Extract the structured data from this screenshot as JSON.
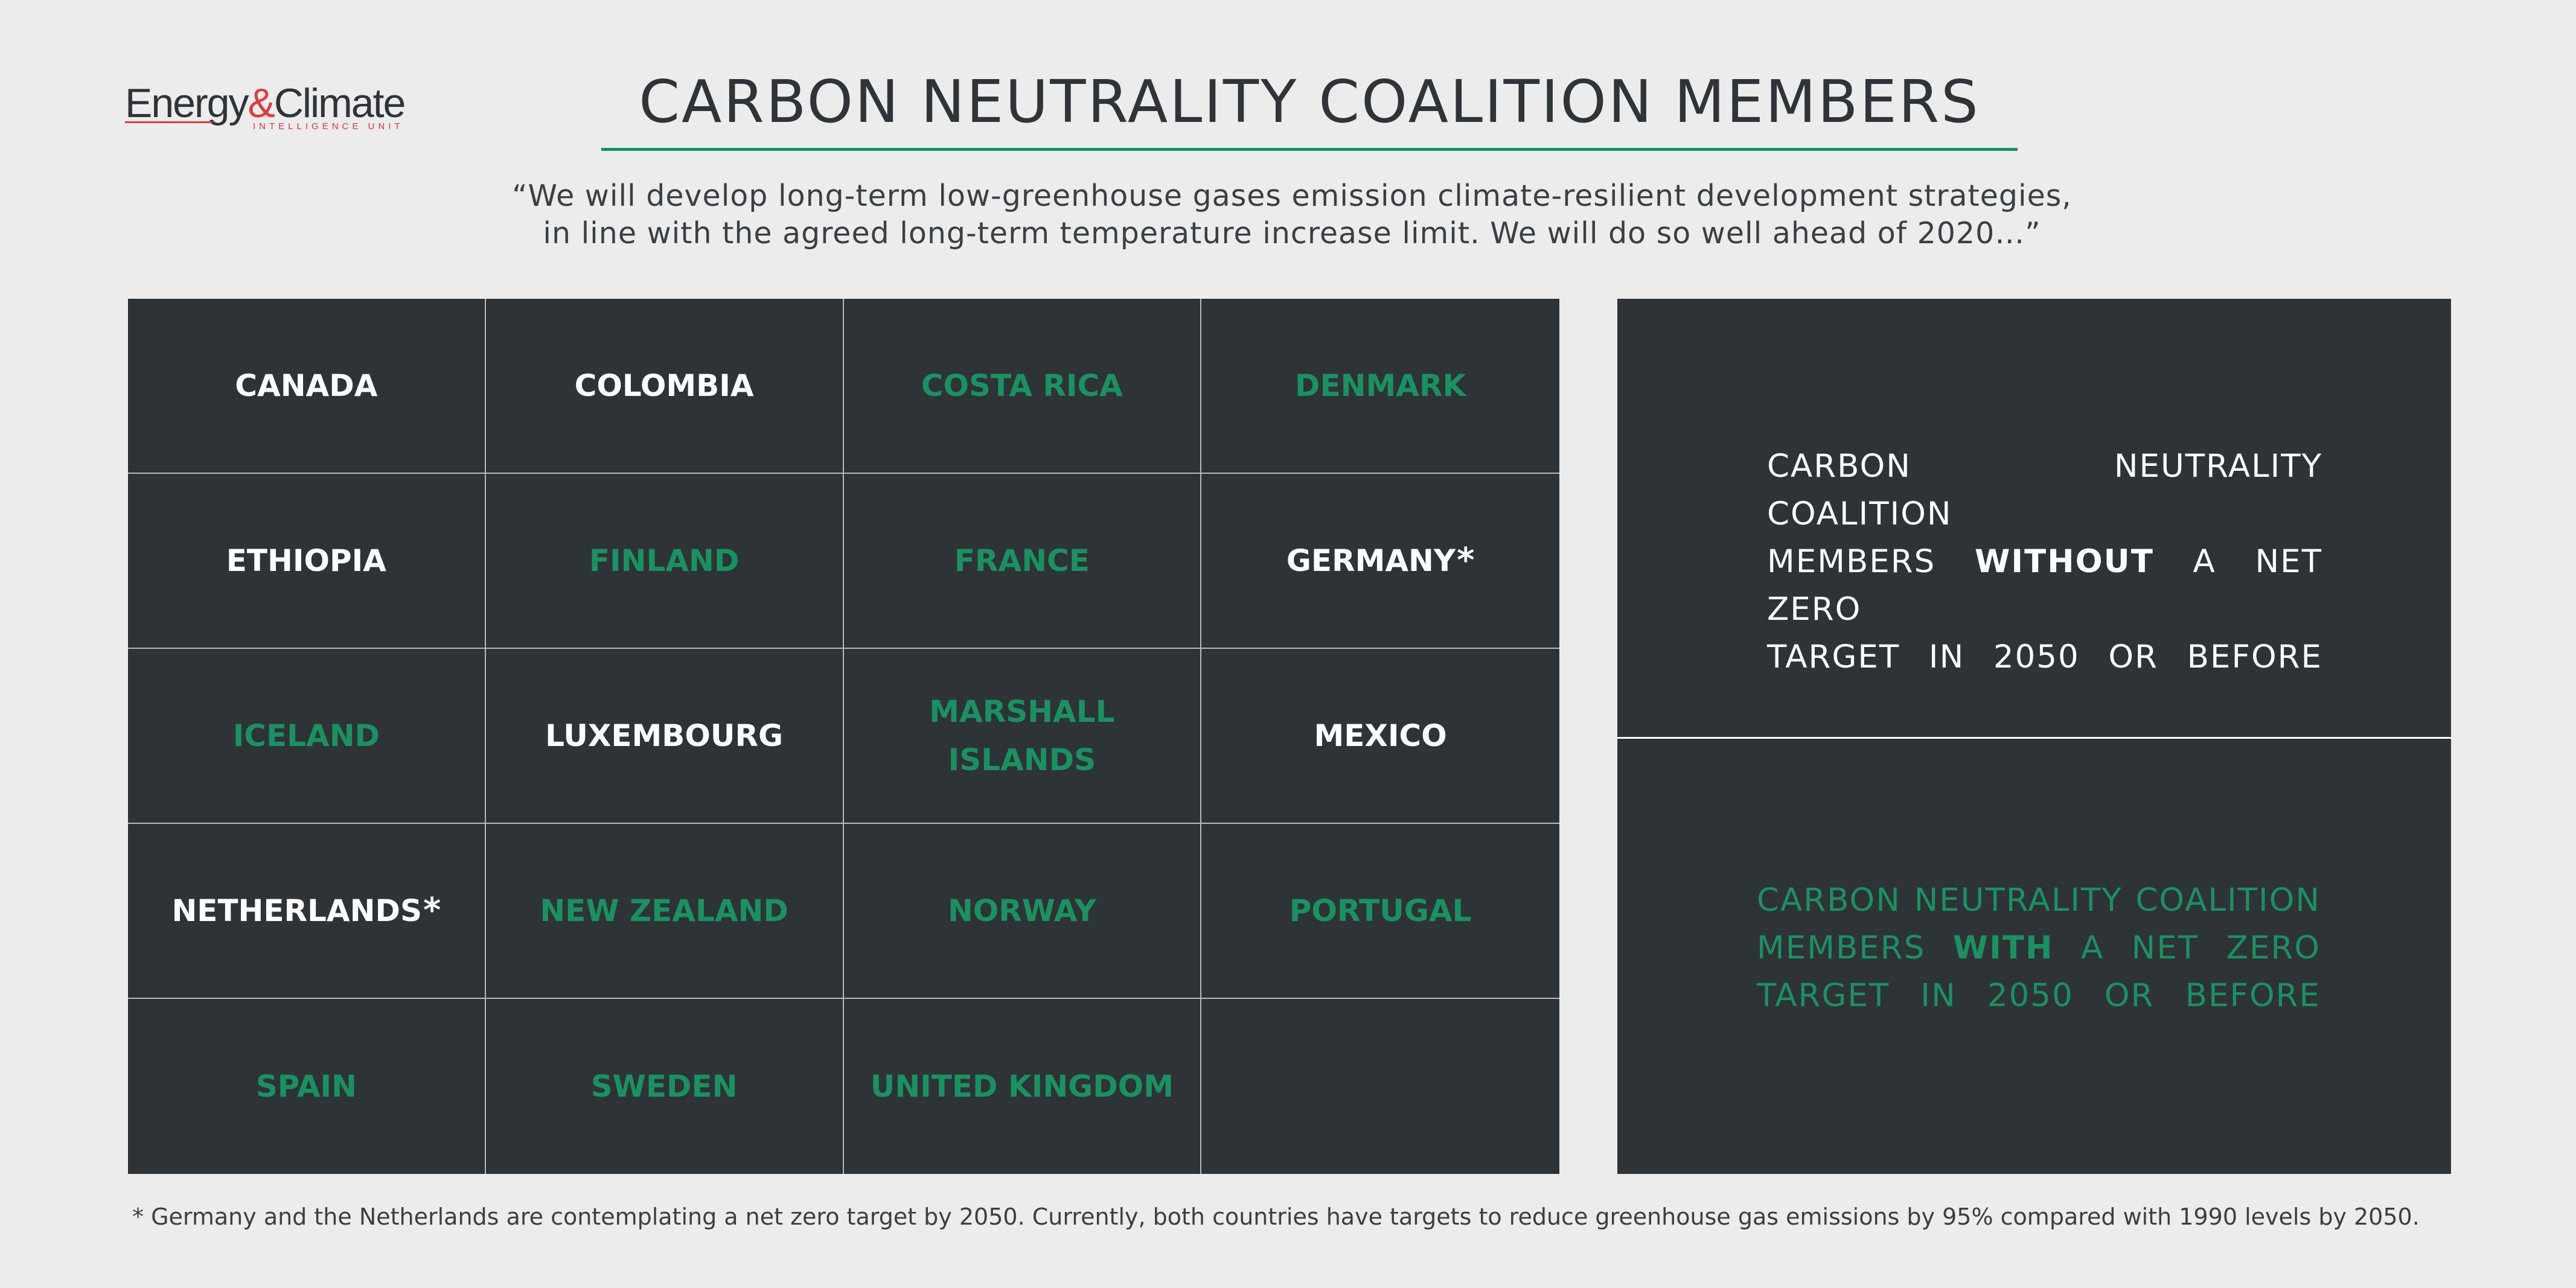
{
  "logo": {
    "main_1": "Energy",
    "amp": "&",
    "main_2": "Climate",
    "sub": "INTELLIGENCE UNIT"
  },
  "title": "CARBON NEUTRALITY COALITION MEMBERS",
  "quote": {
    "line1": "“We will develop long-term low-greenhouse gases emission climate-resilient development strategies,",
    "line2": "in line with the agreed long-term temperature increase limit. We will do so well ahead of 2020…”"
  },
  "colors": {
    "green": "#1a9161",
    "white": "#ffffff",
    "panel": "#2e3338",
    "background": "#ebeceb"
  },
  "countries": [
    {
      "name": "CANADA",
      "color": "white",
      "asterisk": ""
    },
    {
      "name": "COLOMBIA",
      "color": "white",
      "asterisk": ""
    },
    {
      "name": "COSTA RICA",
      "color": "green",
      "asterisk": ""
    },
    {
      "name": "DENMARK",
      "color": "green",
      "asterisk": ""
    },
    {
      "name": "ETHIOPIA",
      "color": "white",
      "asterisk": ""
    },
    {
      "name": "FINLAND",
      "color": "green",
      "asterisk": ""
    },
    {
      "name": "FRANCE",
      "color": "green",
      "asterisk": ""
    },
    {
      "name": "GERMANY",
      "color": "white",
      "asterisk": "*"
    },
    {
      "name": "ICELAND",
      "color": "green",
      "asterisk": ""
    },
    {
      "name": "LUXEMBOURG",
      "color": "white",
      "asterisk": ""
    },
    {
      "name": "MARSHALL\nISLANDS",
      "color": "green",
      "asterisk": ""
    },
    {
      "name": "MEXICO",
      "color": "white",
      "asterisk": ""
    },
    {
      "name": "NETHERLANDS",
      "color": "white",
      "asterisk": "*"
    },
    {
      "name": "NEW ZEALAND",
      "color": "green",
      "asterisk": ""
    },
    {
      "name": "NORWAY",
      "color": "green",
      "asterisk": ""
    },
    {
      "name": "PORTUGAL",
      "color": "green",
      "asterisk": ""
    },
    {
      "name": "SPAIN",
      "color": "green",
      "asterisk": ""
    },
    {
      "name": "SWEDEN",
      "color": "green",
      "asterisk": ""
    },
    {
      "name": "UNITED KINGDOM",
      "color": "green",
      "asterisk": ""
    },
    {
      "name": "",
      "color": "white",
      "asterisk": ""
    }
  ],
  "legend": {
    "without": {
      "line1": "CARBON NEUTRALITY COALITION",
      "line2_pre": "MEMBERS",
      "line2_bold": "WITHOUT",
      "line2_post": "A NET ZERO",
      "line3": "TARGET IN 2050 OR BEFORE"
    },
    "with": {
      "line1": "CARBON NEUTRALITY COALITION",
      "line2_pre": "MEMBERS",
      "line2_bold": "WITH",
      "line2_post": "A NET ZERO",
      "line3": "TARGET IN 2050 OR BEFORE"
    }
  },
  "footnote": "* Germany and the Netherlands are contemplating a net zero target by 2050. Currently, both countries have targets to reduce greenhouse gas emissions by 95% compared with 1990 levels by 2050."
}
